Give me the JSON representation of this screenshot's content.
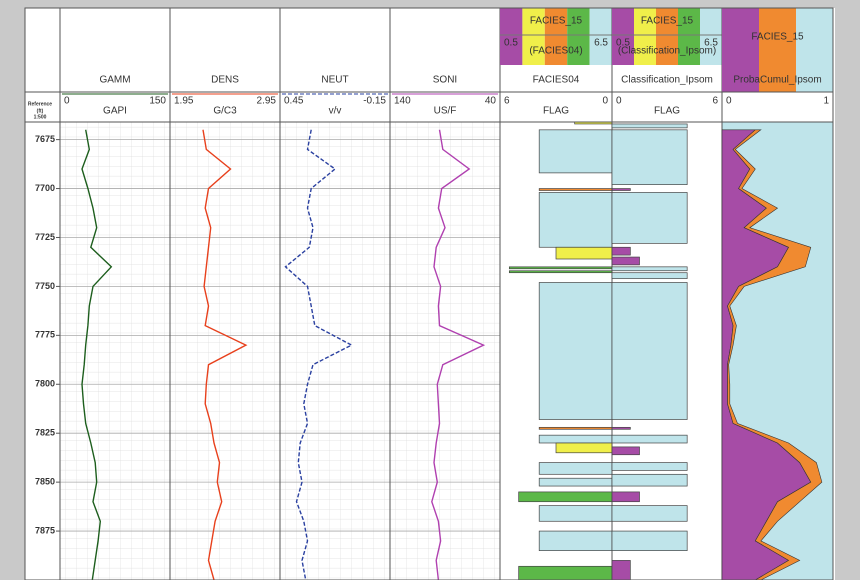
{
  "chart_data": {
    "type": "well-log",
    "reference": "Reference",
    "depth_unit": "(ft)",
    "scale": "1:500",
    "ylim": [
      7666,
      7900
    ],
    "yticks": [
      7675,
      7700,
      7725,
      7750,
      7775,
      7800,
      7825,
      7850,
      7875
    ],
    "grid": true,
    "depths": [
      7670,
      7680,
      7690,
      7700,
      7710,
      7720,
      7730,
      7740,
      7750,
      7760,
      7770,
      7780,
      7790,
      7800,
      7810,
      7820,
      7830,
      7840,
      7850,
      7860,
      7870,
      7880,
      7890,
      7900
    ],
    "tracks": [
      {
        "type": "line",
        "name": "GAMM",
        "unit": "GAPI",
        "xlim": [
          0,
          150
        ],
        "color": "#1d5e1d",
        "values": [
          35,
          40,
          30,
          38,
          45,
          50,
          42,
          70,
          45,
          40,
          38,
          35,
          33,
          30,
          32,
          35,
          42,
          48,
          50,
          45,
          55,
          52,
          48,
          44
        ]
      },
      {
        "type": "line",
        "name": "DENS",
        "unit": "G/C3",
        "xlim": [
          1.95,
          2.95
        ],
        "color": "#e8401c",
        "values": [
          2.25,
          2.28,
          2.5,
          2.3,
          2.27,
          2.32,
          2.3,
          2.28,
          2.26,
          2.3,
          2.27,
          2.64,
          2.3,
          2.28,
          2.27,
          2.32,
          2.35,
          2.4,
          2.38,
          2.42,
          2.36,
          2.33,
          2.3,
          2.35
        ]
      },
      {
        "type": "line",
        "name": "NEUT",
        "unit": "v/v",
        "xlim": [
          0.45,
          -0.15
        ],
        "color": "#2a40a0",
        "dashed": true,
        "values": [
          0.28,
          0.3,
          0.15,
          0.28,
          0.3,
          0.27,
          0.29,
          0.42,
          0.3,
          0.28,
          0.26,
          0.06,
          0.27,
          0.3,
          0.32,
          0.3,
          0.34,
          0.35,
          0.33,
          0.36,
          0.32,
          0.3,
          0.33,
          0.31
        ]
      },
      {
        "type": "line",
        "name": "SONI",
        "unit": "US/F",
        "xlim": [
          140,
          40
        ],
        "color": "#b040b0",
        "values": [
          95,
          92,
          68,
          93,
          96,
          90,
          98,
          100,
          94,
          96,
          95,
          55,
          92,
          97,
          96,
          95,
          98,
          100,
          97,
          102,
          96,
          94,
          98,
          96
        ]
      },
      {
        "type": "facies",
        "name": "FACIES04",
        "unit": "FLAG",
        "xlim": [
          6,
          0
        ],
        "strip": "FACIES_15",
        "strip_range": [
          0.5,
          6.5
        ],
        "strip_source": "(FACIES04)",
        "strip_colors": [
          "#a64ca6",
          "#f0ef4a",
          "#f08a30",
          "#5cb848",
          "#bfe4ea"
        ],
        "tops": [
          7666,
          7670,
          7700,
          7702,
          7730,
          7740,
          7742,
          7748,
          7822,
          7826,
          7830,
          7840,
          7848,
          7855,
          7862,
          7875,
          7893
        ],
        "bases": [
          7667,
          7692,
          7701,
          7730,
          7736,
          7741,
          7743,
          7818,
          7823,
          7830,
          7835,
          7846,
          7852,
          7860,
          7870,
          7885,
          7900
        ],
        "block_values": [
          2,
          3.9,
          3.9,
          3.9,
          3,
          5.5,
          5.5,
          3.9,
          3.9,
          3.9,
          3,
          3.9,
          3.9,
          5,
          3.9,
          3.9,
          5
        ],
        "colors": [
          "#f0ef4a",
          "#bfe4ea",
          "#f08a30",
          "#bfe4ea",
          "#f0ef4a",
          "#5cb848",
          "#5cb848",
          "#bfe4ea",
          "#f08a30",
          "#bfe4ea",
          "#f0ef4a",
          "#bfe4ea",
          "#bfe4ea",
          "#5cb848",
          "#bfe4ea",
          "#bfe4ea",
          "#5cb848"
        ]
      },
      {
        "type": "facies",
        "name": "Classification_Ipsom",
        "unit": "FLAG",
        "xlim": [
          0,
          6
        ],
        "strip": "FACIES_15",
        "strip_range": [
          0.5,
          6.5
        ],
        "strip_source": "(Classification_Ipsom)",
        "strip_colors": [
          "#a64ca6",
          "#f0ef4a",
          "#f08a30",
          "#5cb848",
          "#bfe4ea"
        ],
        "tops": [
          7667,
          7670,
          7700,
          7702,
          7730,
          7735,
          7740,
          7743,
          7748,
          7822,
          7826,
          7832,
          7840,
          7846,
          7855,
          7862,
          7875,
          7890
        ],
        "bases": [
          7669,
          7698,
          7701,
          7728,
          7734,
          7739,
          7742,
          7746,
          7818,
          7823,
          7830,
          7836,
          7844,
          7852,
          7860,
          7870,
          7885,
          7900
        ],
        "block_values": [
          4.1,
          4.1,
          1,
          4.1,
          1,
          1.5,
          4.1,
          4.1,
          4.1,
          1,
          4.1,
          1.5,
          4.1,
          4.1,
          1.5,
          4.1,
          4.1,
          1
        ],
        "colors": [
          "#bfe4ea",
          "#bfe4ea",
          "#a64ca6",
          "#bfe4ea",
          "#a64ca6",
          "#a64ca6",
          "#bfe4ea",
          "#bfe4ea",
          "#bfe4ea",
          "#a64ca6",
          "#bfe4ea",
          "#a64ca6",
          "#bfe4ea",
          "#bfe4ea",
          "#a64ca6",
          "#bfe4ea",
          "#bfe4ea",
          "#a64ca6"
        ]
      },
      {
        "type": "stacked-area",
        "name": "ProbaCumul_Ipsom",
        "xlim": [
          0,
          1
        ],
        "strip": "FACIES_15",
        "background": "#bfe4ea",
        "strip_colors": [
          "#a64ca6",
          "#f08a30",
          "#bfe4ea"
        ],
        "series": [
          {
            "color": "#a64ca6",
            "values": [
              0.3,
              0.1,
              0.25,
              0.15,
              0.4,
              0.2,
              0.6,
              0.5,
              0.15,
              0.05,
              0.1,
              0.08,
              0.05,
              0.05,
              0.05,
              0.1,
              0.5,
              0.7,
              0.8,
              0.5,
              0.4,
              0.3,
              0.6,
              0.3
            ]
          },
          {
            "color": "#f08a30",
            "values": [
              0.05,
              0.02,
              0.05,
              0.03,
              0.1,
              0.05,
              0.2,
              0.25,
              0.05,
              0.02,
              0.03,
              0.02,
              0.01,
              0.02,
              0.02,
              0.04,
              0.1,
              0.15,
              0.1,
              0.2,
              0.1,
              0.05,
              0.1,
              0.05
            ]
          }
        ]
      }
    ]
  }
}
